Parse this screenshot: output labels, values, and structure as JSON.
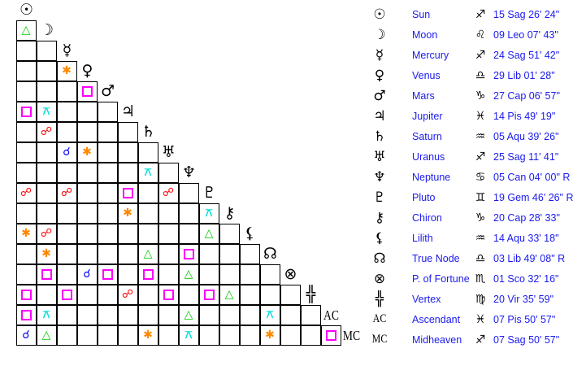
{
  "planets": [
    {
      "name": "Sun",
      "glyph": "☉",
      "icon": "sun-icon",
      "sign_glyph": "♐",
      "sign_icon": "sagittarius-icon",
      "position": "15 Sag 26' 24\""
    },
    {
      "name": "Moon",
      "glyph": "☽",
      "icon": "moon-icon",
      "sign_glyph": "♌",
      "sign_icon": "leo-icon",
      "position": "09 Leo 07' 43\""
    },
    {
      "name": "Mercury",
      "glyph": "☿",
      "icon": "mercury-icon",
      "sign_glyph": "♐",
      "sign_icon": "sagittarius-icon",
      "position": "24 Sag 51' 42\""
    },
    {
      "name": "Venus",
      "glyph": "♀",
      "icon": "venus-icon",
      "sign_glyph": "♎",
      "sign_icon": "libra-icon",
      "position": "29 Lib 01' 28\""
    },
    {
      "name": "Mars",
      "glyph": "♂",
      "icon": "mars-icon",
      "sign_glyph": "♑",
      "sign_icon": "capricorn-icon",
      "position": "27 Cap 06' 57\""
    },
    {
      "name": "Jupiter",
      "glyph": "♃",
      "icon": "jupiter-icon",
      "sign_glyph": "♓",
      "sign_icon": "pisces-icon",
      "position": "14 Pis 49' 19\""
    },
    {
      "name": "Saturn",
      "glyph": "♄",
      "icon": "saturn-icon",
      "sign_glyph": "♒",
      "sign_icon": "aquarius-icon",
      "position": "05 Aqu 39' 26\""
    },
    {
      "name": "Uranus",
      "glyph": "♅",
      "icon": "uranus-icon",
      "sign_glyph": "♐",
      "sign_icon": "sagittarius-icon",
      "position": "25 Sag 11' 41\""
    },
    {
      "name": "Neptune",
      "glyph": "♆",
      "icon": "neptune-icon",
      "sign_glyph": "♋",
      "sign_icon": "cancer-icon",
      "position": "05 Can 04' 00\" R"
    },
    {
      "name": "Pluto",
      "glyph": "♇",
      "icon": "pluto-icon",
      "sign_glyph": "♊",
      "sign_icon": "gemini-icon",
      "position": "19 Gem 46' 26\" R"
    },
    {
      "name": "Chiron",
      "glyph": "⚷",
      "icon": "chiron-icon",
      "sign_glyph": "♑",
      "sign_icon": "capricorn-icon",
      "position": "20 Cap 28' 33\""
    },
    {
      "name": "Lilith",
      "glyph": "⚸",
      "icon": "lilith-icon",
      "sign_glyph": "♒",
      "sign_icon": "aquarius-icon",
      "position": "14 Aqu 33' 18\""
    },
    {
      "name": "True Node",
      "glyph": "☊",
      "icon": "north-node-icon",
      "sign_glyph": "♎",
      "sign_icon": "libra-icon",
      "position": "03 Lib 49' 08\" R"
    },
    {
      "name": "P. of Fortune",
      "glyph": "⊗",
      "icon": "part-of-fortune-icon",
      "sign_glyph": "♏",
      "sign_icon": "scorpio-icon",
      "position": "01 Sco 32' 16\""
    },
    {
      "name": "Vertex",
      "glyph": "╬",
      "icon": "vertex-icon",
      "sign_glyph": "♍",
      "sign_icon": "virgo-icon",
      "position": "20 Vir 35' 59\""
    },
    {
      "name": "Ascendant",
      "glyph": "AC",
      "icon": "ascendant-label",
      "text": true,
      "sign_glyph": "♓",
      "sign_icon": "pisces-icon",
      "position": "07 Pis 50' 57\""
    },
    {
      "name": "Midheaven",
      "glyph": "MC",
      "icon": "midheaven-label",
      "text": true,
      "sign_glyph": "♐",
      "sign_icon": "sagittarius-icon",
      "position": "07 Sag 50' 57\""
    }
  ],
  "aspect_types": {
    "conjunction": {
      "glyph": "☌",
      "color": "#0000ff"
    },
    "opposition": {
      "glyph": "☍",
      "color": "#ff0000"
    },
    "trine": {
      "glyph": "△",
      "color": "#00cc00"
    },
    "square": {
      "glyph": "□",
      "color": "#ff00ff"
    },
    "sextile": {
      "glyph": "✱",
      "color": "#ff8800"
    },
    "quincunx": {
      "glyph": "⚻",
      "color": "#00dddd"
    }
  },
  "aspects": [
    [
      "Moon",
      "Sun",
      "trine"
    ],
    [
      "Venus",
      "Mercury",
      "sextile"
    ],
    [
      "Mars",
      "Venus",
      "square"
    ],
    [
      "Jupiter",
      "Sun",
      "square"
    ],
    [
      "Jupiter",
      "Moon",
      "quincunx"
    ],
    [
      "Saturn",
      "Moon",
      "opposition"
    ],
    [
      "Uranus",
      "Mercury",
      "conjunction"
    ],
    [
      "Uranus",
      "Venus",
      "sextile"
    ],
    [
      "Neptune",
      "Saturn",
      "quincunx"
    ],
    [
      "Pluto",
      "Sun",
      "opposition"
    ],
    [
      "Pluto",
      "Mercury",
      "opposition"
    ],
    [
      "Pluto",
      "Jupiter",
      "square"
    ],
    [
      "Pluto",
      "Uranus",
      "opposition"
    ],
    [
      "Chiron",
      "Jupiter",
      "sextile"
    ],
    [
      "Chiron",
      "Pluto",
      "quincunx"
    ],
    [
      "Lilith",
      "Sun",
      "sextile"
    ],
    [
      "Lilith",
      "Moon",
      "opposition"
    ],
    [
      "Lilith",
      "Pluto",
      "trine"
    ],
    [
      "True Node",
      "Moon",
      "sextile"
    ],
    [
      "True Node",
      "Saturn",
      "trine"
    ],
    [
      "True Node",
      "Neptune",
      "square"
    ],
    [
      "P. of Fortune",
      "Moon",
      "square"
    ],
    [
      "P. of Fortune",
      "Venus",
      "conjunction"
    ],
    [
      "P. of Fortune",
      "Mars",
      "square"
    ],
    [
      "P. of Fortune",
      "Saturn",
      "square"
    ],
    [
      "P. of Fortune",
      "Neptune",
      "trine"
    ],
    [
      "Vertex",
      "Sun",
      "square"
    ],
    [
      "Vertex",
      "Mercury",
      "square"
    ],
    [
      "Vertex",
      "Jupiter",
      "opposition"
    ],
    [
      "Vertex",
      "Uranus",
      "square"
    ],
    [
      "Vertex",
      "Pluto",
      "square"
    ],
    [
      "Vertex",
      "Chiron",
      "trine"
    ],
    [
      "Ascendant",
      "Sun",
      "square"
    ],
    [
      "Ascendant",
      "Moon",
      "quincunx"
    ],
    [
      "Ascendant",
      "Neptune",
      "trine"
    ],
    [
      "Ascendant",
      "True Node",
      "quincunx"
    ],
    [
      "Midheaven",
      "Sun",
      "conjunction"
    ],
    [
      "Midheaven",
      "Moon",
      "trine"
    ],
    [
      "Midheaven",
      "Saturn",
      "sextile"
    ],
    [
      "Midheaven",
      "Neptune",
      "quincunx"
    ],
    [
      "Midheaven",
      "True Node",
      "sextile"
    ],
    [
      "Midheaven",
      "Ascendant",
      "square"
    ]
  ]
}
